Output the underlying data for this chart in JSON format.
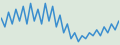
{
  "values": [
    22,
    16,
    26,
    18,
    28,
    20,
    30,
    18,
    32,
    20,
    28,
    18,
    32,
    20,
    30,
    16,
    24,
    12,
    18,
    8,
    12,
    6,
    10,
    8,
    12,
    10,
    14,
    10,
    16,
    12,
    18,
    14,
    20
  ],
  "line_color": "#3a8ecf",
  "background_color": "#dce8dc",
  "linewidth": 1.1
}
